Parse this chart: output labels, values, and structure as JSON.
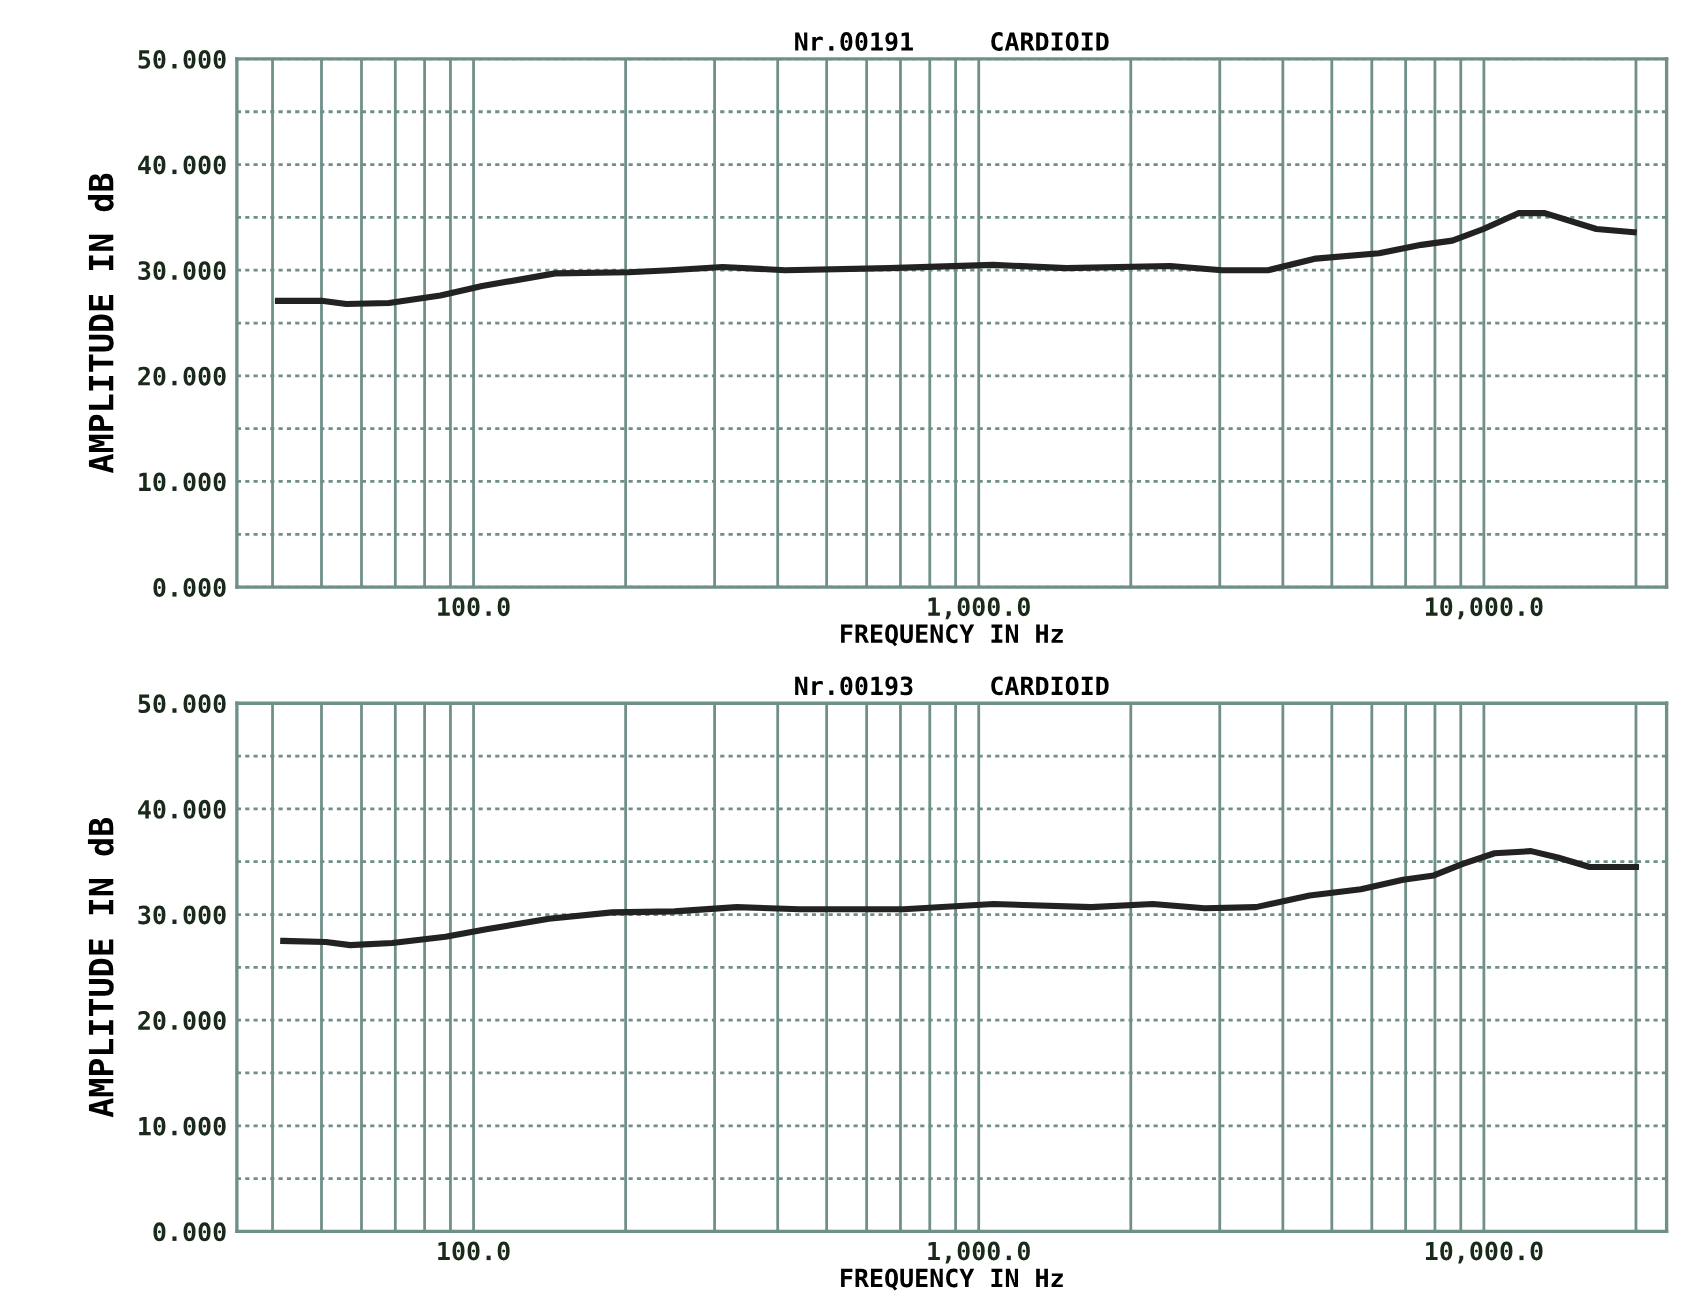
{
  "chart_data": [
    {
      "type": "line",
      "title": "Nr.00191     CARDIOID",
      "xlabel": "FREQUENCY IN Hz",
      "ylabel": "AMPLITUDE IN dB",
      "log": "x",
      "grid": true,
      "marker": "none",
      "line_style": "solid",
      "xlim": [
        34,
        23000
      ],
      "ylim": [
        0,
        50
      ],
      "xticks": [
        {
          "value": 40,
          "label": null
        },
        {
          "value": 50,
          "label": null
        },
        {
          "value": 60,
          "label": null
        },
        {
          "value": 70,
          "label": null
        },
        {
          "value": 80,
          "label": null
        },
        {
          "value": 90,
          "label": null
        },
        {
          "value": 100,
          "label": "100.0"
        },
        {
          "value": 200,
          "label": null
        },
        {
          "value": 300,
          "label": null
        },
        {
          "value": 400,
          "label": null
        },
        {
          "value": 500,
          "label": null
        },
        {
          "value": 600,
          "label": null
        },
        {
          "value": 700,
          "label": null
        },
        {
          "value": 800,
          "label": null
        },
        {
          "value": 900,
          "label": null
        },
        {
          "value": 1000,
          "label": "1,000.0"
        },
        {
          "value": 2000,
          "label": null
        },
        {
          "value": 3000,
          "label": null
        },
        {
          "value": 4000,
          "label": null
        },
        {
          "value": 5000,
          "label": null
        },
        {
          "value": 6000,
          "label": null
        },
        {
          "value": 7000,
          "label": null
        },
        {
          "value": 8000,
          "label": null
        },
        {
          "value": 9000,
          "label": null
        },
        {
          "value": 10000,
          "label": "10,000.0"
        },
        {
          "value": 20000,
          "label": null
        }
      ],
      "yticks": [
        {
          "value": 0,
          "label": "0.000"
        },
        {
          "value": 5,
          "label": null
        },
        {
          "value": 10,
          "label": "10.000"
        },
        {
          "value": 15,
          "label": null
        },
        {
          "value": 20,
          "label": "20.000"
        },
        {
          "value": 25,
          "label": null
        },
        {
          "value": 30,
          "label": "30.000"
        },
        {
          "value": 35,
          "label": null
        },
        {
          "value": 40,
          "label": "40.000"
        },
        {
          "value": 45,
          "label": null
        },
        {
          "value": 50,
          "label": "50.000"
        }
      ],
      "series": [
        {
          "color": "#222222",
          "x": [
            41,
            50,
            56,
            68,
            86,
            104,
            145,
            203,
            245,
            311,
            414,
            664,
            1068,
            1490,
            2393,
            3030,
            3740,
            4650,
            6200,
            7520,
            8660,
            9980,
            11700,
            13200,
            16700,
            19800
          ],
          "values": [
            27.1,
            27.1,
            26.8,
            26.9,
            27.6,
            28.5,
            29.7,
            29.8,
            30.0,
            30.3,
            30.0,
            30.2,
            30.5,
            30.2,
            30.4,
            30.0,
            30.0,
            31.1,
            31.6,
            32.4,
            32.8,
            33.9,
            35.4,
            35.4,
            33.9,
            33.6
          ]
        }
      ]
    },
    {
      "type": "line",
      "title": "Nr.00193     CARDIOID",
      "xlabel": "FREQUENCY IN Hz",
      "ylabel": "AMPLITUDE IN dB",
      "log": "x",
      "grid": true,
      "marker": "none",
      "line_style": "solid",
      "xlim": [
        34,
        23000
      ],
      "ylim": [
        0,
        50
      ],
      "xticks": [
        {
          "value": 40,
          "label": null
        },
        {
          "value": 50,
          "label": null
        },
        {
          "value": 60,
          "label": null
        },
        {
          "value": 70,
          "label": null
        },
        {
          "value": 80,
          "label": null
        },
        {
          "value": 90,
          "label": null
        },
        {
          "value": 100,
          "label": "100.0"
        },
        {
          "value": 200,
          "label": null
        },
        {
          "value": 300,
          "label": null
        },
        {
          "value": 400,
          "label": null
        },
        {
          "value": 500,
          "label": null
        },
        {
          "value": 600,
          "label": null
        },
        {
          "value": 700,
          "label": null
        },
        {
          "value": 800,
          "label": null
        },
        {
          "value": 900,
          "label": null
        },
        {
          "value": 1000,
          "label": "1,000.0"
        },
        {
          "value": 2000,
          "label": null
        },
        {
          "value": 3000,
          "label": null
        },
        {
          "value": 4000,
          "label": null
        },
        {
          "value": 5000,
          "label": null
        },
        {
          "value": 6000,
          "label": null
        },
        {
          "value": 7000,
          "label": null
        },
        {
          "value": 8000,
          "label": null
        },
        {
          "value": 9000,
          "label": null
        },
        {
          "value": 10000,
          "label": "10,000.0"
        },
        {
          "value": 20000,
          "label": null
        }
      ],
      "yticks": [
        {
          "value": 0,
          "label": "0.000"
        },
        {
          "value": 5,
          "label": null
        },
        {
          "value": 10,
          "label": "10.000"
        },
        {
          "value": 15,
          "label": null
        },
        {
          "value": 20,
          "label": "20.000"
        },
        {
          "value": 25,
          "label": null
        },
        {
          "value": 30,
          "label": "30.000"
        },
        {
          "value": 35,
          "label": null
        },
        {
          "value": 40,
          "label": "40.000"
        },
        {
          "value": 45,
          "label": null
        },
        {
          "value": 50,
          "label": "50.000"
        }
      ],
      "series": [
        {
          "color": "#222222",
          "x": [
            42,
            51,
            57,
            69,
            88,
            106,
            141,
            188,
            250,
            332,
            442,
            710,
            1070,
            1670,
            2210,
            2800,
            3540,
            4520,
            5710,
            6920,
            7960,
            9080,
            10500,
            12400,
            14000,
            16200,
            20000
          ],
          "values": [
            27.5,
            27.4,
            27.1,
            27.3,
            27.9,
            28.6,
            29.6,
            30.2,
            30.3,
            30.7,
            30.5,
            30.5,
            31.0,
            30.7,
            31.0,
            30.6,
            30.7,
            31.8,
            32.4,
            33.3,
            33.7,
            34.8,
            35.8,
            36.0,
            35.4,
            34.5,
            34.5
          ]
        }
      ]
    }
  ]
}
